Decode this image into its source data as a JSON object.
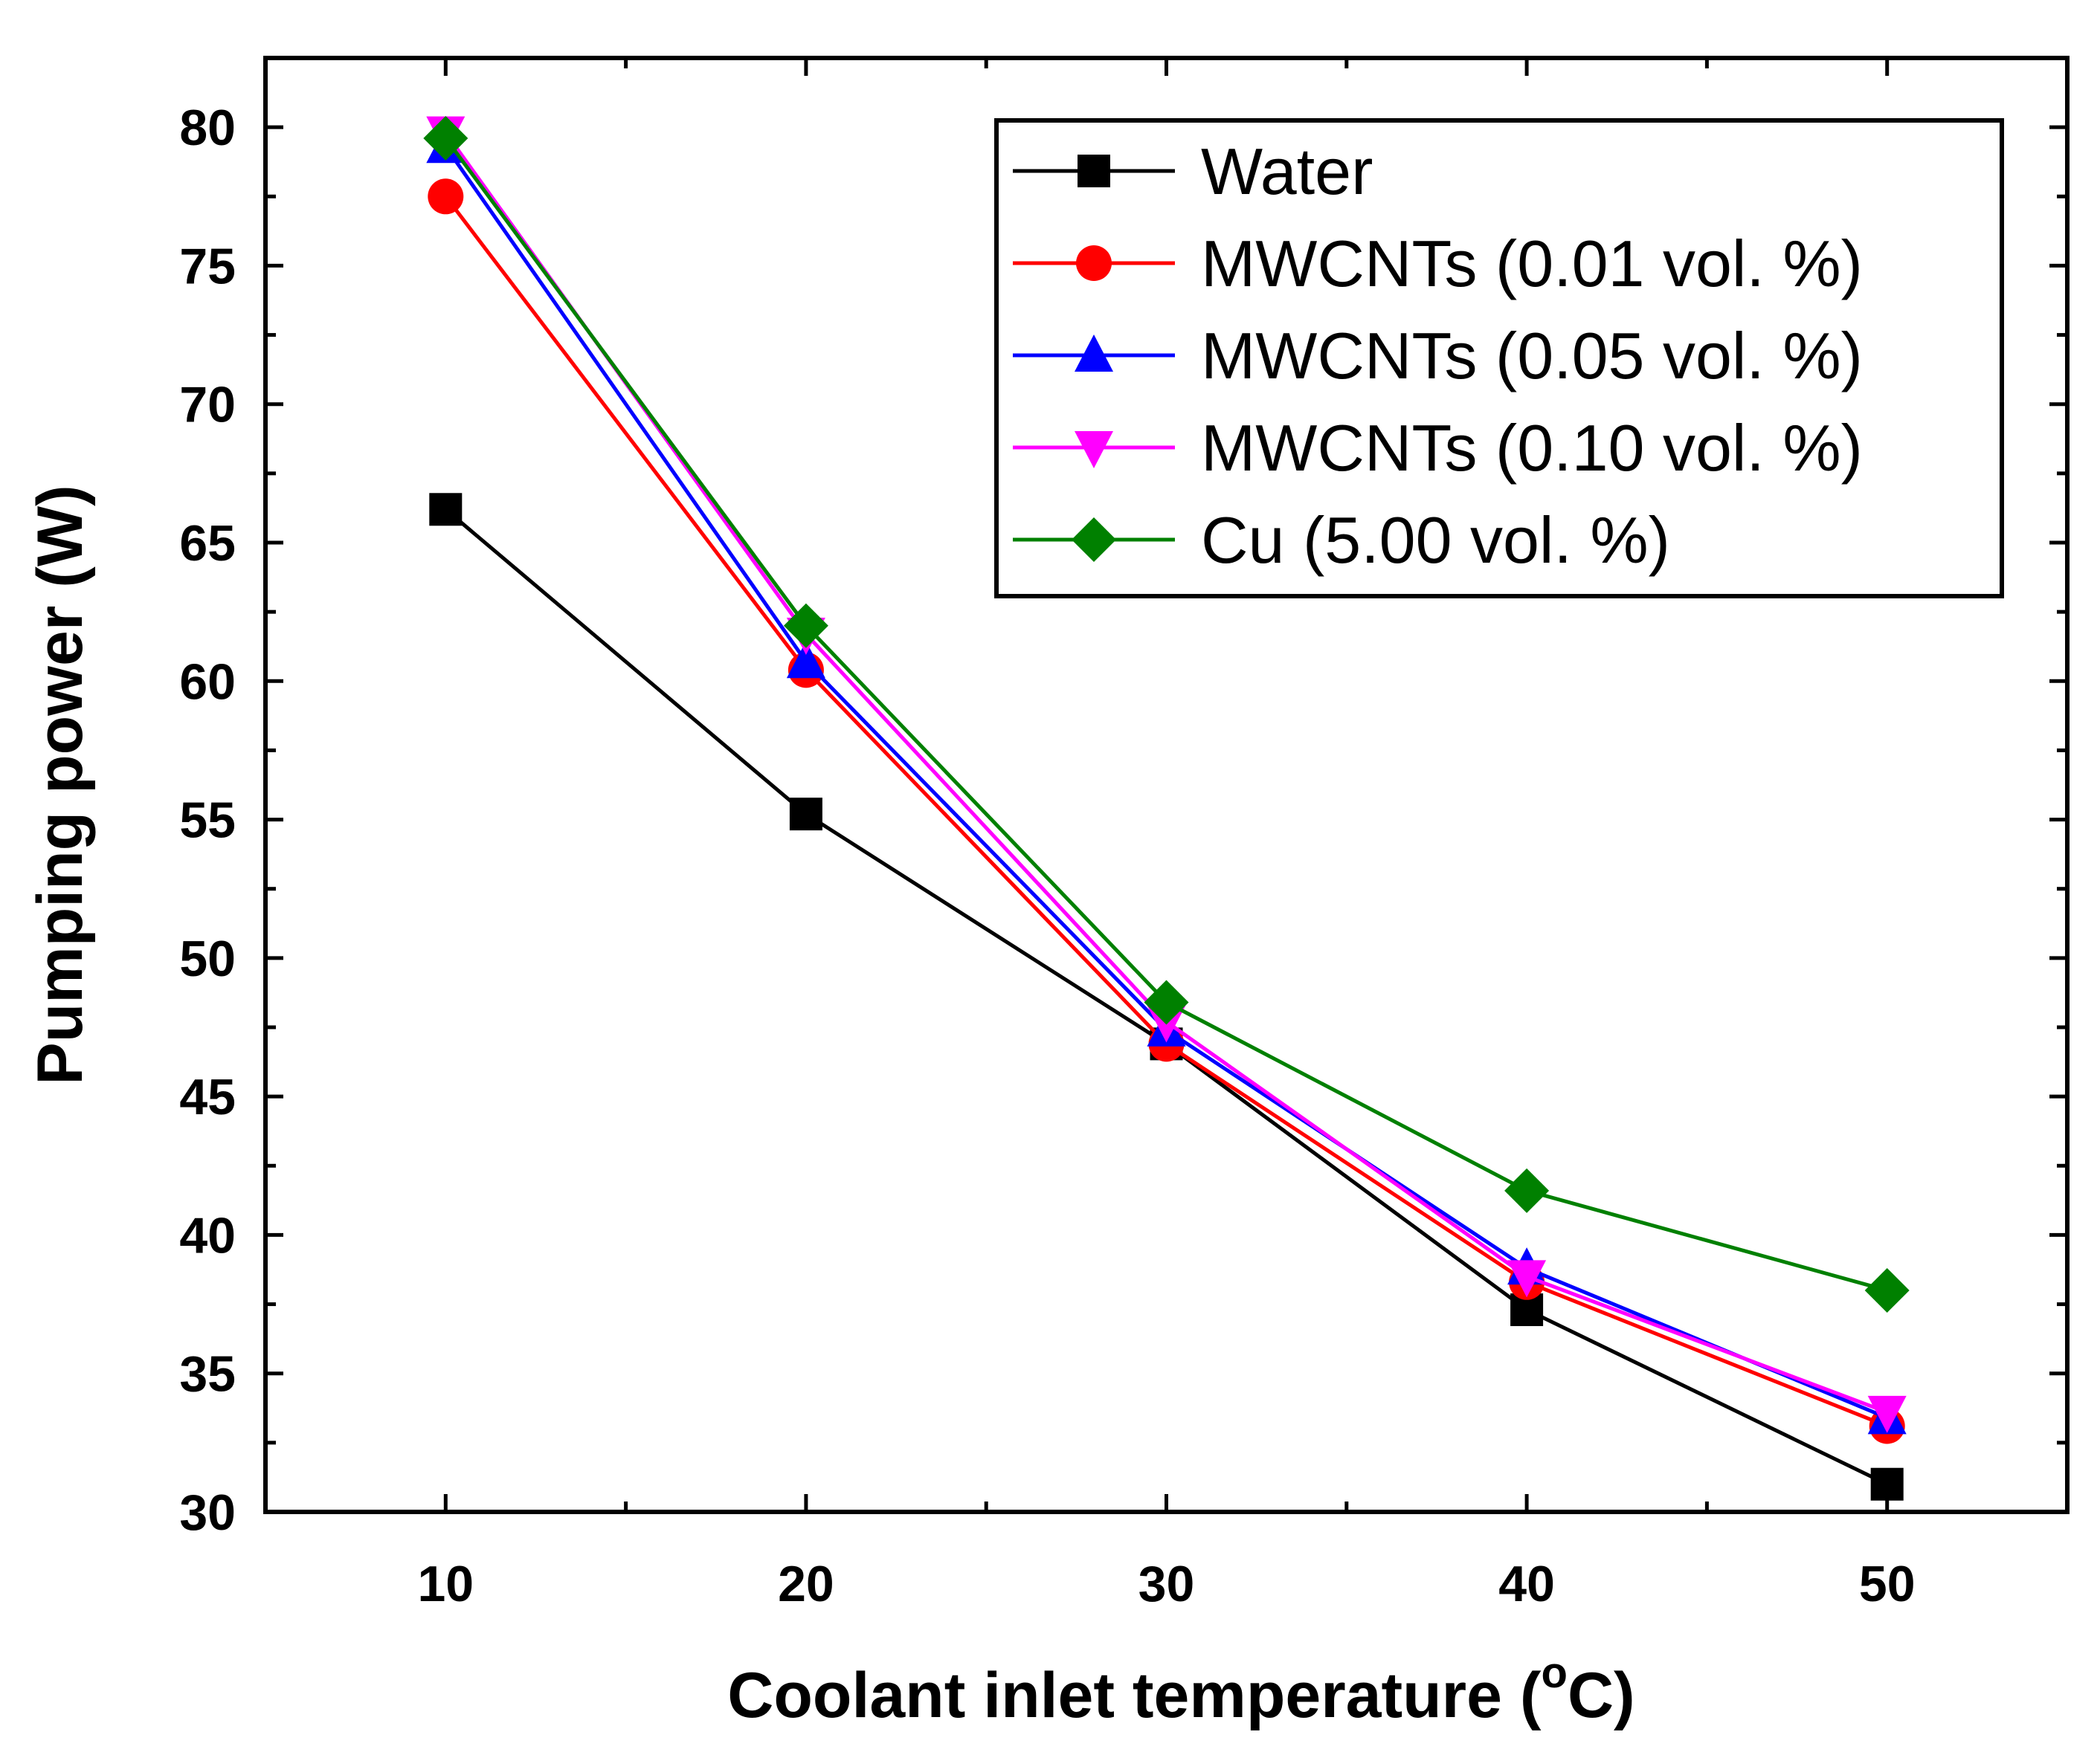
{
  "chart_data": {
    "type": "line",
    "title": "",
    "xlabel": "Coolant inlet temperature (",
    "xlabel_sup": "o",
    "xlabel_unit": "C)",
    "ylabel": "Pumping power (W)",
    "x": [
      10,
      20,
      30,
      40,
      50
    ],
    "xlim": [
      5,
      55
    ],
    "ylim": [
      30,
      82.5
    ],
    "xticks": [
      10,
      20,
      30,
      40,
      50
    ],
    "yticks": [
      30,
      35,
      40,
      45,
      50,
      55,
      60,
      65,
      70,
      75,
      80
    ],
    "grid": false,
    "legend_position": "top-right",
    "series": [
      {
        "name": "Water",
        "color": "#000000",
        "marker": "square",
        "values": [
          66.2,
          55.2,
          46.9,
          37.3,
          31.0
        ]
      },
      {
        "name": "MWCNTs (0.01 vol. %)",
        "color": "#ff0000",
        "marker": "circle",
        "values": [
          77.5,
          60.4,
          46.9,
          38.3,
          33.1
        ]
      },
      {
        "name": "MWCNTs (0.05 vol. %)",
        "color": "#0000ff",
        "marker": "triangle-up",
        "values": [
          79.3,
          60.7,
          47.4,
          38.8,
          33.4
        ]
      },
      {
        "name": "MWCNTs (0.10 vol. %)",
        "color": "#ff00ff",
        "marker": "triangle-down",
        "values": [
          79.8,
          61.7,
          47.7,
          38.5,
          33.6
        ]
      },
      {
        "name": "Cu (5.00 vol. %)",
        "color": "#008000",
        "marker": "diamond",
        "values": [
          79.6,
          62.0,
          48.4,
          41.6,
          38.0
        ]
      }
    ]
  }
}
